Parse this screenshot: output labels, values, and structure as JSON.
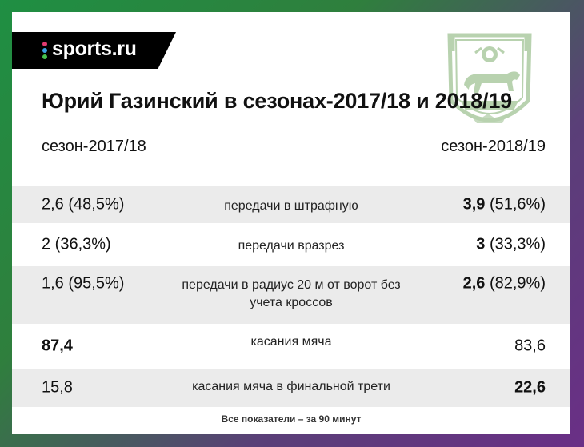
{
  "brand": {
    "logo_text": "sports.ru",
    "dot_colors": [
      "#e23a6f",
      "#3aa0e2",
      "#46c14d"
    ]
  },
  "title": "Юрий Газинский в сезонах-2017/18 и 2018/19",
  "seasons": {
    "left": "сезон-2017/18",
    "right": "сезон-2018/19"
  },
  "rows": [
    {
      "metric": "передачи в штрафную",
      "left_main": "2,6",
      "left_pct": " (48,5%)",
      "left_bold": false,
      "right_main": "3,9",
      "right_pct": " (51,6%)",
      "right_bold": true
    },
    {
      "metric": "передачи вразрез",
      "left_main": "2",
      "left_pct": " (36,3%)",
      "left_bold": false,
      "right_main": "3",
      "right_pct": " (33,3%)",
      "right_bold": true
    },
    {
      "metric": "передачи в радиус 20 м от ворот без учета кроссов",
      "left_main": "1,6",
      "left_pct": " (95,5%)",
      "left_bold": false,
      "right_main": "2,6",
      "right_pct": " (82,9%)",
      "right_bold": true
    },
    {
      "metric": "касания мяча",
      "left_main": "87,4",
      "left_pct": "",
      "left_bold": true,
      "right_main": "83,6",
      "right_pct": "",
      "right_bold": false
    },
    {
      "metric": "касания мяча в финальной трети",
      "left_main": "15,8",
      "left_pct": "",
      "left_bold": false,
      "right_main": "22,6",
      "right_pct": "",
      "right_bold": true
    }
  ],
  "footnote": "Все показатели – за 90 минут",
  "colors": {
    "row_shade": "#ebebeb",
    "crest_green": "#7fae6f"
  }
}
